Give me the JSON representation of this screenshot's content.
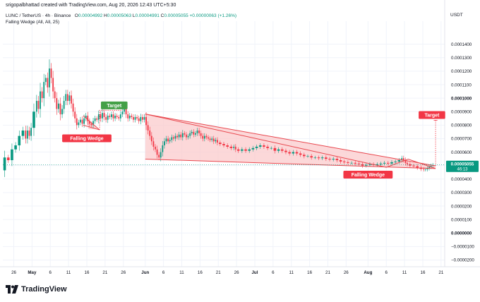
{
  "header": {
    "credit": "srigopalbhattad created with TradingView.com, Aug 20, 2026 12:43 UTC+5:30",
    "symbol": "LUNC / TetherUS · 4h · Binance",
    "open_label": "O",
    "open": "0.00004992",
    "high_label": "H",
    "high": "0.00005063",
    "low_label": "L",
    "low": "0.00004991",
    "close_label": "C",
    "close": "0.00005055",
    "change": "+0.00000063 (+1.26%)",
    "indicator": "Falling Wedge (All, All, 25)",
    "currency": "USDT"
  },
  "footer": {
    "brand": "TradingView",
    "logo": "tradingview-logo-icon"
  },
  "colors": {
    "up": "#089981",
    "down": "#f23645",
    "wedge_line": "#e8474e",
    "wedge_fill": "#fbc7c9",
    "target_green": "#43a047",
    "target_red": "#f23645",
    "price_badge": "#089981",
    "axis_text": "#131722",
    "grid": "#f0f3fa"
  },
  "annotations": {
    "target1": "Target",
    "target2": "Target",
    "wedge1": "Falling Wedge",
    "wedge2": "Falling Wedge"
  },
  "price_badge": {
    "price": "0.00005055",
    "countdown": "46:13"
  },
  "chart_data": {
    "type": "candlestick",
    "ylim": [
      -2.5e-05,
      0.000155
    ],
    "y_ticks": [
      "0.0001400",
      "0.0001300",
      "0.0001200",
      "0.0001100",
      "0.0001000",
      "0.0000900",
      "0.0000800",
      "0.0000700",
      "0.0000600",
      "0.0000500",
      "0.0000400",
      "0.0000300",
      "0.0000200",
      "0.0000100",
      "0.0000000",
      "−0.0000100",
      "−0.0000200"
    ],
    "y_tick_values": [
      0.00014,
      0.00013,
      0.00012,
      0.00011,
      0.0001,
      9e-05,
      8e-05,
      7e-05,
      6e-05,
      5e-05,
      4e-05,
      3e-05,
      2e-05,
      1e-05,
      0.0,
      -1e-05,
      -2e-05
    ],
    "bold_ticks": [
      "0.0001000",
      "0.0000000"
    ],
    "x_ticks": [
      "26",
      "May",
      "6",
      "11",
      "16",
      "21",
      "26",
      "Jun",
      "6",
      "11",
      "16",
      "21",
      "26",
      "Jul",
      "6",
      "11",
      "16",
      "21",
      "26",
      "Aug",
      "6",
      "11",
      "16",
      "21"
    ],
    "bold_x_ticks": [
      "May",
      "Jun",
      "Jul",
      "Aug"
    ],
    "x_tick_days": [
      -5,
      0,
      5,
      10,
      15,
      20,
      25,
      31,
      36,
      41,
      46,
      51,
      56,
      61,
      66,
      71,
      76,
      81,
      86,
      92,
      97,
      102,
      107,
      112
    ],
    "xlim_days": [
      -8,
      113
    ],
    "price_path": [
      [
        -8,
        4.65e-05
      ],
      [
        -7,
        5.6e-05
      ],
      [
        -6,
        5.4e-05
      ],
      [
        -5,
        6.2e-05
      ],
      [
        -4,
        6.5e-05
      ],
      [
        -3,
        7.2e-05
      ],
      [
        -2,
        7.6e-05
      ],
      [
        -1.5,
        7e-05
      ],
      [
        -1,
        7.6e-05
      ],
      [
        -0.5,
        7.2e-05
      ],
      [
        0,
        7.8e-05
      ],
      [
        1,
        9e-05
      ],
      [
        1.5,
        9.8e-05
      ],
      [
        2,
        9.2e-05
      ],
      [
        2.5,
        0.000105
      ],
      [
        3,
        0.0001
      ],
      [
        3.5,
        0.000112
      ],
      [
        4,
        0.000115
      ],
      [
        4.5,
        0.000108
      ],
      [
        5,
        0.000122
      ],
      [
        5.5,
        0.000115
      ],
      [
        6,
        0.000105
      ],
      [
        6.5,
        0.0001
      ],
      [
        7,
        9.2e-05
      ],
      [
        7.5,
        9.6e-05
      ],
      [
        8,
        8.8e-05
      ],
      [
        8.5,
        9.2e-05
      ],
      [
        9,
        9.8e-05
      ],
      [
        9.5,
        0.000103
      ],
      [
        10,
        9.8e-05
      ],
      [
        10.5,
        0.000102
      ],
      [
        11,
        9.6e-05
      ],
      [
        11.5,
        9e-05
      ],
      [
        12,
        8.5e-05
      ],
      [
        12.5,
        8e-05
      ],
      [
        13,
        8.2e-05
      ],
      [
        13.5,
        8.4e-05
      ],
      [
        14,
        8.1e-05
      ],
      [
        14.5,
        8.5e-05
      ],
      [
        15,
        8.7e-05
      ],
      [
        15.5,
        8.3e-05
      ],
      [
        16,
        8.1e-05
      ],
      [
        16.5,
        8e-05
      ],
      [
        17,
        8.3e-05
      ],
      [
        17.5,
        8.5e-05
      ],
      [
        18,
        8.4e-05
      ],
      [
        18.5,
        8.8e-05
      ],
      [
        19,
        8.5e-05
      ],
      [
        19.5,
        8.9e-05
      ],
      [
        20,
        8.6e-05
      ],
      [
        20.5,
        8.4e-05
      ],
      [
        21,
        8.7e-05
      ],
      [
        21.5,
        8.6e-05
      ],
      [
        22,
        8.8e-05
      ],
      [
        22.5,
        8.5e-05
      ],
      [
        23,
        8.7e-05
      ],
      [
        23.5,
        8.6e-05
      ],
      [
        24,
        8.5e-05
      ],
      [
        24.5,
        8.8e-05
      ],
      [
        25,
        9e-05
      ],
      [
        25.5,
        9.2e-05
      ],
      [
        26,
        8.8e-05
      ],
      [
        26.5,
        8.5e-05
      ],
      [
        27,
        8.7e-05
      ],
      [
        27.5,
        8.6e-05
      ],
      [
        28,
        8.4e-05
      ],
      [
        28.5,
        8.6e-05
      ],
      [
        29,
        8.5e-05
      ],
      [
        29.5,
        8.3e-05
      ],
      [
        30,
        8.6e-05
      ],
      [
        30.5,
        8.4e-05
      ],
      [
        31,
        8.6e-05
      ],
      [
        31.5,
        8e-05
      ],
      [
        32,
        7.6e-05
      ],
      [
        32.5,
        7.2e-05
      ],
      [
        33,
        6.8e-05
      ],
      [
        33.5,
        6.4e-05
      ],
      [
        34,
        6.2e-05
      ],
      [
        34.5,
        5.8e-05
      ],
      [
        35,
        5.6e-05
      ],
      [
        35.5,
        6e-05
      ],
      [
        36,
        6.5e-05
      ],
      [
        36.5,
        6.8e-05
      ],
      [
        37,
        7e-05
      ],
      [
        37.5,
        6.8e-05
      ],
      [
        38,
        6.9e-05
      ],
      [
        38.5,
        7.1e-05
      ],
      [
        39,
        7e-05
      ],
      [
        39.5,
        7.2e-05
      ],
      [
        40,
        7.1e-05
      ],
      [
        40.5,
        7.3e-05
      ],
      [
        41,
        7.1e-05
      ],
      [
        41.5,
        7.4e-05
      ],
      [
        42,
        7.3e-05
      ],
      [
        42.5,
        7.1e-05
      ],
      [
        43,
        7.2e-05
      ],
      [
        43.5,
        7.4e-05
      ],
      [
        44,
        7.5e-05
      ],
      [
        44.5,
        7.3e-05
      ],
      [
        45,
        7.4e-05
      ],
      [
        45.5,
        7.6e-05
      ],
      [
        46,
        7.4e-05
      ],
      [
        46.5,
        7.2e-05
      ],
      [
        47,
        7e-05
      ],
      [
        47.5,
        7.2e-05
      ],
      [
        48,
        7.1e-05
      ],
      [
        48.5,
        7e-05
      ],
      [
        49,
        6.9e-05
      ],
      [
        49.5,
        7e-05
      ],
      [
        50,
        6.8e-05
      ],
      [
        50.5,
        6.9e-05
      ],
      [
        51,
        6.7e-05
      ],
      [
        52,
        6.6e-05
      ],
      [
        53,
        6.5e-05
      ],
      [
        54,
        6.4e-05
      ],
      [
        55,
        6.3e-05
      ],
      [
        55.5,
        6.4e-05
      ],
      [
        56,
        6.2e-05
      ],
      [
        57,
        6.1e-05
      ],
      [
        58,
        6.2e-05
      ],
      [
        59,
        6.1e-05
      ],
      [
        60,
        6.2e-05
      ],
      [
        61,
        6.3e-05
      ],
      [
        62,
        6.4e-05
      ],
      [
        63,
        6.5e-05
      ],
      [
        64,
        6.4e-05
      ],
      [
        65,
        6.3e-05
      ],
      [
        66,
        6.3e-05
      ],
      [
        67,
        6.1e-05
      ],
      [
        68,
        6.2e-05
      ],
      [
        69,
        6.1e-05
      ],
      [
        70,
        6e-05
      ],
      [
        71,
        5.9e-05
      ],
      [
        72,
        6e-05
      ],
      [
        73,
        5.9e-05
      ],
      [
        74,
        5.8e-05
      ],
      [
        75,
        5.7e-05
      ],
      [
        76,
        5.7e-05
      ],
      [
        77,
        5.6e-05
      ],
      [
        78,
        5.6e-05
      ],
      [
        79,
        5.55e-05
      ],
      [
        80,
        5.6e-05
      ],
      [
        81,
        5.5e-05
      ],
      [
        82,
        5.45e-05
      ],
      [
        83,
        5.5e-05
      ],
      [
        84,
        5.4e-05
      ],
      [
        85,
        5.3e-05
      ],
      [
        86,
        5.25e-05
      ],
      [
        87,
        5.2e-05
      ],
      [
        88,
        5.2e-05
      ],
      [
        89,
        5.15e-05
      ],
      [
        90,
        5.1e-05
      ],
      [
        91,
        5e-05
      ],
      [
        92,
        5.05e-05
      ],
      [
        93,
        5.1e-05
      ],
      [
        94,
        5.05e-05
      ],
      [
        95,
        5.1e-05
      ],
      [
        96,
        5.15e-05
      ],
      [
        97,
        5.2e-05
      ],
      [
        98,
        5.15e-05
      ],
      [
        99,
        5.25e-05
      ],
      [
        100,
        5.3e-05
      ],
      [
        101,
        5.4e-05
      ],
      [
        101.5,
        5.55e-05
      ],
      [
        102,
        5.4e-05
      ],
      [
        102.5,
        5.2e-05
      ],
      [
        103,
        5.1e-05
      ],
      [
        104,
        5e-05
      ],
      [
        105,
        4.95e-05
      ],
      [
        106,
        4.85e-05
      ],
      [
        107,
        4.75e-05
      ],
      [
        107.5,
        4.7e-05
      ],
      [
        108,
        4.72e-05
      ],
      [
        108.5,
        4.8e-05
      ],
      [
        109,
        4.9e-05
      ],
      [
        109.5,
        4.99e-05
      ],
      [
        110,
        5.05e-05
      ]
    ],
    "small_wedge": [
      [
        14.5,
        8.7e-05
      ],
      [
        18,
        7.7e-05
      ],
      [
        15.5,
        7.7e-05
      ]
    ],
    "small_wedge_lines": [
      [
        [
          14,
          8.7e-05
        ],
        [
          18.5,
          7.65e-05
        ]
      ],
      [
        [
          14,
          8e-05
        ],
        [
          18.5,
          7.65e-05
        ]
      ]
    ],
    "target1_line": [
      [
        18.5,
        7.65e-05
      ],
      [
        18.5,
        9.1e-05
      ],
      [
        24.5,
        9.1e-05
      ]
    ],
    "large_wedge": {
      "upper": [
        [
          31,
          8.82e-05
        ],
        [
          110.5,
          4.98e-05
        ]
      ],
      "lower": [
        [
          31,
          5.48e-05
        ],
        [
          110.5,
          4.78e-05
        ]
      ],
      "mid": [
        [
          31,
          8.82e-05
        ],
        [
          97,
          4.87e-05
        ],
        [
          103,
          5.48e-05
        ],
        [
          110.5,
          4.78e-05
        ]
      ]
    },
    "target2_line": [
      [
        110.5,
        4.98e-05
      ],
      [
        110.5,
        8.35e-05
      ]
    ],
    "target2_dotted_top": [
      [
        110,
        8.35e-05
      ],
      [
        111,
        8.35e-05
      ]
    ]
  }
}
